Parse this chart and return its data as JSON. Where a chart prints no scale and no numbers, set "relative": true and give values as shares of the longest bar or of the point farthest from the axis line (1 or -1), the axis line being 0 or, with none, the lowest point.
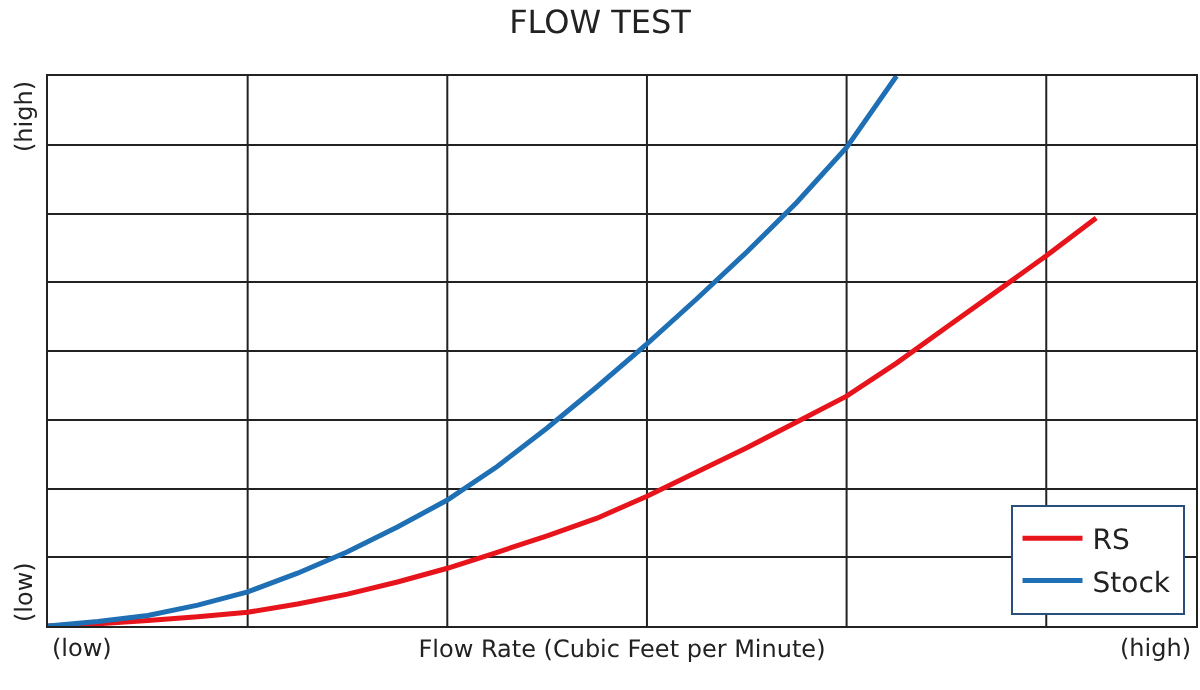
{
  "chart_data": {
    "type": "line",
    "title": "FLOW TEST",
    "xlabel": "Flow Rate (Cubic Feet per Minute)",
    "relative": true,
    "grid": true,
    "legend": "bottom right",
    "marker": "none",
    "line_style": "solid",
    "annotations": [
      "(low)",
      "(high)",
      "(high)",
      "(low)"
    ],
    "categories": [
      null,
      null,
      null,
      null,
      null,
      null,
      null,
      null,
      null,
      null,
      null,
      null,
      null,
      null,
      null,
      null,
      null,
      null,
      null,
      null,
      null,
      null,
      null,
      null
    ],
    "series": [
      {
        "name": "RS",
        "color": "#e8141b",
        "values": [
          0,
          0.004,
          0.01,
          0.017,
          0.025,
          0.04,
          0.058,
          0.08,
          0.105,
          0.134,
          0.164,
          0.196,
          0.236,
          0.28,
          0.324,
          0.371,
          0.418,
          0.478,
          0.543,
          0.608,
          0.673,
          0.742,
          null,
          null
        ]
      },
      {
        "name": "Stock",
        "color": "#1f6fb5",
        "values": [
          0,
          0.008,
          0.019,
          0.038,
          0.062,
          0.096,
          0.135,
          0.18,
          0.229,
          0.29,
          0.36,
          0.435,
          0.513,
          0.595,
          0.68,
          0.77,
          0.87,
          1,
          null,
          null,
          null,
          null,
          null,
          null
        ]
      }
    ]
  }
}
